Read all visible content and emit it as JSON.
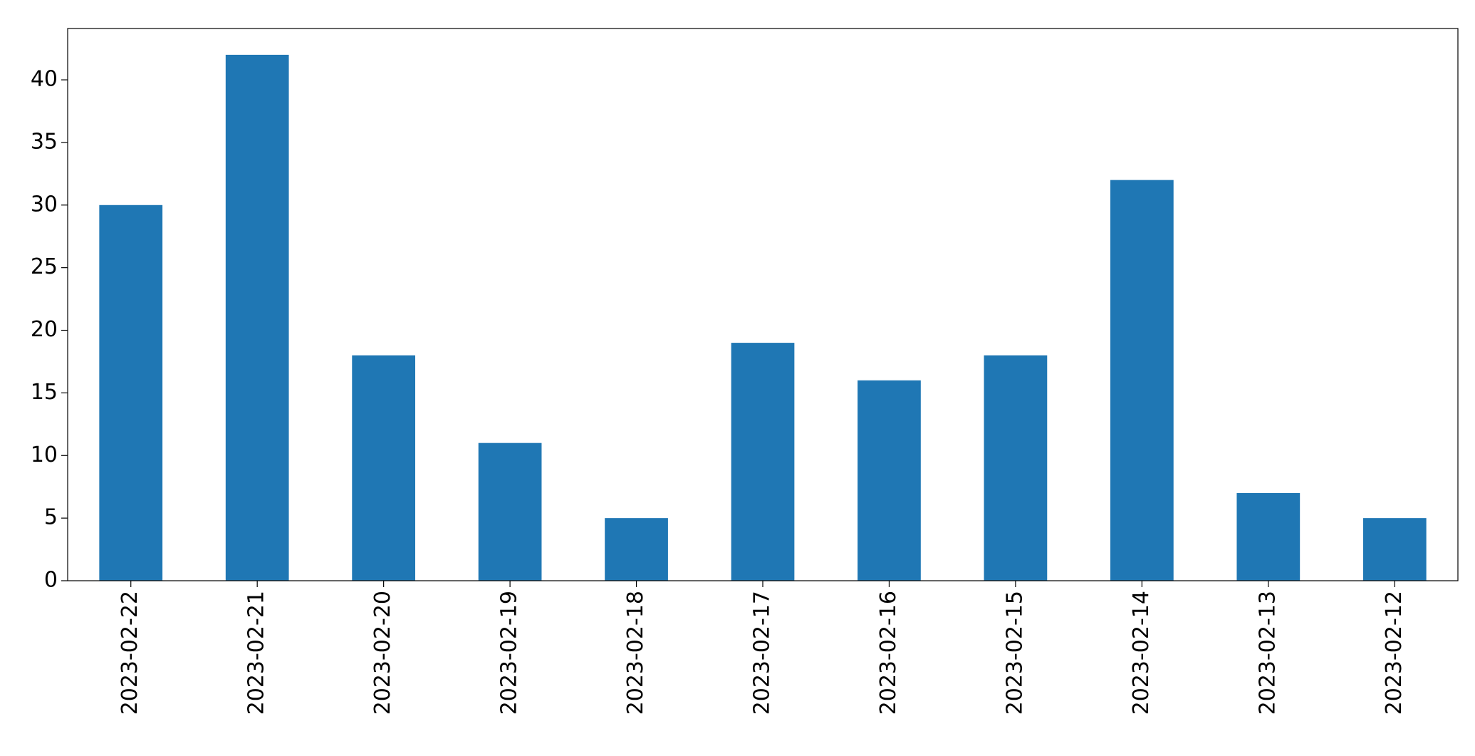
{
  "chart_data": {
    "type": "bar",
    "categories": [
      "2023-02-22",
      "2023-02-21",
      "2023-02-20",
      "2023-02-19",
      "2023-02-18",
      "2023-02-17",
      "2023-02-16",
      "2023-02-15",
      "2023-02-14",
      "2023-02-13",
      "2023-02-12"
    ],
    "values": [
      30,
      42,
      18,
      11,
      5,
      19,
      16,
      18,
      32,
      7,
      5
    ],
    "color": "#1f77b4",
    "ylim": [
      0,
      44.1
    ],
    "yticks": [
      0,
      5,
      10,
      15,
      20,
      25,
      30,
      35,
      40
    ],
    "grid": false
  }
}
